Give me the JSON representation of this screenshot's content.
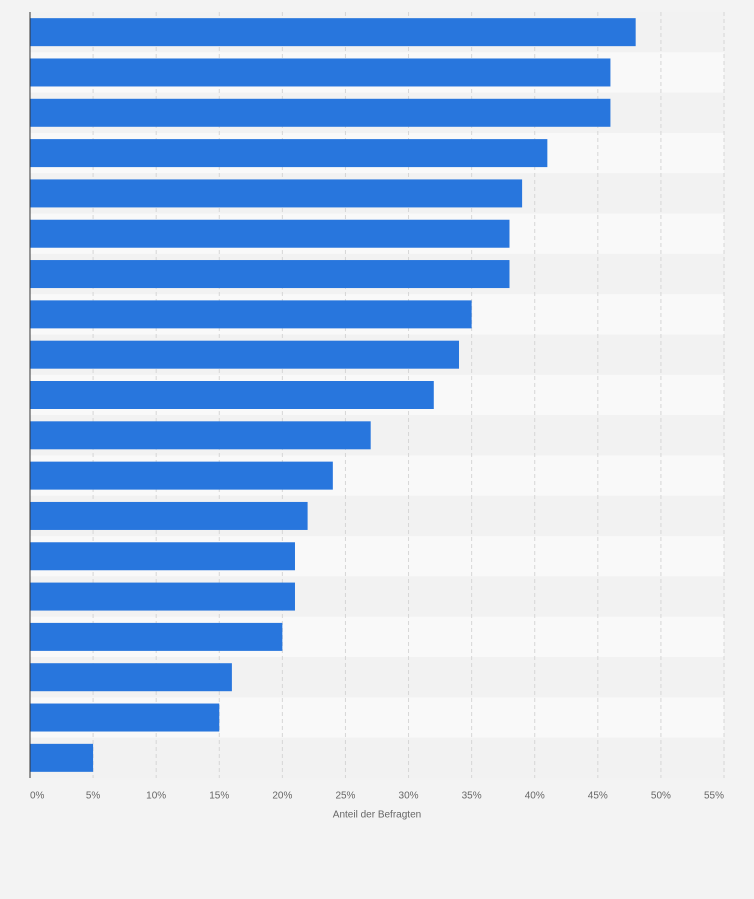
{
  "chart_data": {
    "type": "bar",
    "orientation": "horizontal",
    "x_label": "Anteil der Befragten",
    "categories": [
      null,
      null,
      null,
      null,
      null,
      null,
      null,
      null,
      null,
      null,
      null,
      null,
      null,
      null,
      null,
      null,
      null,
      null,
      null
    ],
    "values": [
      48,
      46,
      46,
      41,
      39,
      38,
      38,
      35,
      34,
      32,
      27,
      24,
      22,
      21,
      21,
      20,
      16,
      15,
      5
    ],
    "color": "#2876dd",
    "xlim": [
      0,
      55
    ],
    "xticks": [
      {
        "value": 0,
        "label": "0%"
      },
      {
        "value": 5,
        "label": "5%"
      },
      {
        "value": 10,
        "label": "10%"
      },
      {
        "value": 15,
        "label": "15%"
      },
      {
        "value": 20,
        "label": "20%"
      },
      {
        "value": 25,
        "label": "25%"
      },
      {
        "value": 30,
        "label": "30%"
      },
      {
        "value": 35,
        "label": "35%"
      },
      {
        "value": 40,
        "label": "40%"
      },
      {
        "value": 45,
        "label": "45%"
      },
      {
        "value": 50,
        "label": "50%"
      },
      {
        "value": 55,
        "label": "55%"
      }
    ],
    "grid": true
  }
}
